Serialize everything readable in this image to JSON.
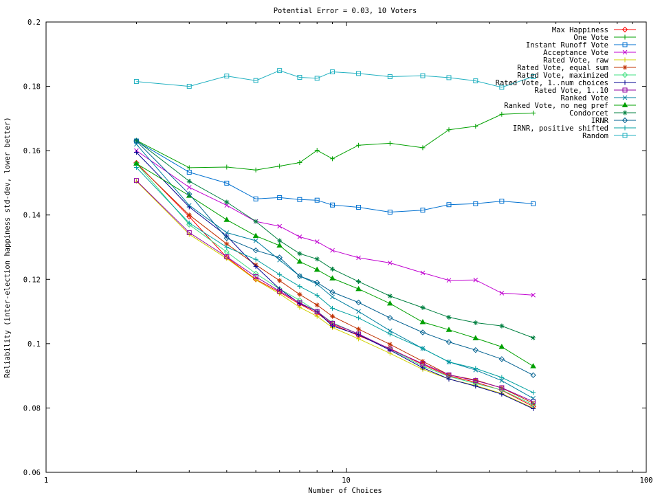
{
  "chart_data": {
    "type": "line",
    "title": "Potential Error = 0.03, 10 Voters",
    "xlabel": "Number of Choices",
    "ylabel": "Reliability (inter-election happiness std-dev, lower better)",
    "x_scale": "log",
    "xlim": [
      1,
      100
    ],
    "ylim": [
      0.06,
      0.2
    ],
    "x_ticks": [
      1,
      10,
      100
    ],
    "x_tick_labels": [
      "1",
      "10",
      "100"
    ],
    "y_ticks": [
      0.06,
      0.08,
      0.1,
      0.12,
      0.14,
      0.16,
      0.18,
      0.2
    ],
    "y_tick_labels": [
      "0.06",
      "0.08",
      "0.1",
      "0.12",
      "0.14",
      "0.16",
      "0.18",
      "0.2"
    ],
    "grid": false,
    "legend_position": "top-right",
    "x": [
      2,
      3,
      4,
      5,
      6,
      7,
      8,
      9,
      11,
      14,
      18,
      22,
      27,
      33,
      42
    ],
    "series": [
      {
        "name": "Max Happiness",
        "color": "#ff0000",
        "marker": "diamond",
        "values": [
          0.1562,
          0.1395,
          0.1268,
          0.12,
          0.116,
          0.1123,
          0.1095,
          0.106,
          0.1025,
          0.0985,
          0.0935,
          0.09,
          0.088,
          0.0855,
          0.0805
        ]
      },
      {
        "name": "One Vote",
        "color": "#00a000",
        "marker": "plus",
        "values": [
          0.1632,
          0.1547,
          0.1549,
          0.154,
          0.1552,
          0.1563,
          0.1601,
          0.1575,
          0.1617,
          0.1623,
          0.1609,
          0.1665,
          0.1676,
          0.1713,
          0.1717
        ]
      },
      {
        "name": "Instant Runoff Vote",
        "color": "#0070d0",
        "marker": "square",
        "values": [
          0.163,
          0.1533,
          0.1499,
          0.145,
          0.1454,
          0.1448,
          0.1446,
          0.1431,
          0.1424,
          0.1409,
          0.1415,
          0.1432,
          0.1435,
          0.1443,
          0.1435
        ]
      },
      {
        "name": "Acceptance Vote",
        "color": "#c000d0",
        "marker": "x",
        "values": [
          0.16,
          0.1486,
          0.143,
          0.138,
          0.1365,
          0.1332,
          0.1317,
          0.129,
          0.1267,
          0.1251,
          0.122,
          0.1197,
          0.1198,
          0.1157,
          0.1151
        ]
      },
      {
        "name": "Rated Vote, raw",
        "color": "#d0d000",
        "marker": "plus",
        "values": [
          0.1505,
          0.134,
          0.1265,
          0.1198,
          0.1155,
          0.1113,
          0.1085,
          0.105,
          0.1015,
          0.097,
          0.092,
          0.089,
          0.087,
          0.0845,
          0.08
        ]
      },
      {
        "name": "Rated Vote, equal sum",
        "color": "#c03000",
        "marker": "asterisk",
        "values": [
          0.156,
          0.14,
          0.131,
          0.1245,
          0.1196,
          0.1153,
          0.112,
          0.1085,
          0.1045,
          0.0998,
          0.0945,
          0.0903,
          0.0887,
          0.0862,
          0.0815
        ]
      },
      {
        "name": "Rated Vote, maximized",
        "color": "#40e080",
        "marker": "diamond",
        "values": [
          0.156,
          0.137,
          0.1285,
          0.1218,
          0.117,
          0.1135,
          0.11,
          0.1065,
          0.103,
          0.0983,
          0.093,
          0.0898,
          0.0876,
          0.0856,
          0.081
        ]
      },
      {
        "name": "Rated Vote, 1..num choices",
        "color": "#000090",
        "marker": "plus",
        "values": [
          0.1595,
          0.1425,
          0.1335,
          0.124,
          0.117,
          0.1125,
          0.11,
          0.1055,
          0.1028,
          0.098,
          0.0925,
          0.089,
          0.0868,
          0.0843,
          0.0798
        ]
      },
      {
        "name": "Rated Vote, 1..10",
        "color": "#9000a0",
        "marker": "square",
        "values": [
          0.1507,
          0.1345,
          0.127,
          0.1208,
          0.1163,
          0.1127,
          0.11,
          0.1063,
          0.103,
          0.0983,
          0.0938,
          0.0903,
          0.0885,
          0.0863,
          0.082
        ]
      },
      {
        "name": "Ranked Vote",
        "color": "#0080a0",
        "marker": "x",
        "values": [
          0.162,
          0.143,
          0.1345,
          0.132,
          0.126,
          0.121,
          0.1185,
          0.1145,
          0.11,
          0.104,
          0.0985,
          0.0943,
          0.0918,
          0.0885,
          0.083
        ]
      },
      {
        "name": "Ranked Vote, no neg pref",
        "color": "#00a000",
        "marker": "triangle",
        "values": [
          0.156,
          0.146,
          0.1385,
          0.1335,
          0.1305,
          0.1255,
          0.123,
          0.1203,
          0.117,
          0.1125,
          0.1067,
          0.1043,
          0.1017,
          0.099,
          0.093
        ]
      },
      {
        "name": "Condorcet",
        "color": "#008040",
        "marker": "asterisk",
        "values": [
          0.1632,
          0.1505,
          0.144,
          0.138,
          0.132,
          0.128,
          0.1263,
          0.1232,
          0.1193,
          0.1148,
          0.1112,
          0.1082,
          0.1065,
          0.1055,
          0.1018
        ]
      },
      {
        "name": "IRNR",
        "color": "#006090",
        "marker": "diamond",
        "values": [
          0.163,
          0.1465,
          0.1328,
          0.129,
          0.1268,
          0.121,
          0.119,
          0.116,
          0.1128,
          0.108,
          0.1035,
          0.1005,
          0.098,
          0.0952,
          0.0902
        ]
      },
      {
        "name": "IRNR, positive shifted",
        "color": "#00a0a0",
        "marker": "plus",
        "values": [
          0.1548,
          0.1375,
          0.13,
          0.1262,
          0.1215,
          0.1178,
          0.115,
          0.111,
          0.108,
          0.103,
          0.0985,
          0.0943,
          0.0923,
          0.0895,
          0.0848
        ]
      },
      {
        "name": "Random",
        "color": "#20b0c0",
        "marker": "square",
        "values": [
          0.1815,
          0.18,
          0.1832,
          0.1818,
          0.1849,
          0.1828,
          0.1825,
          0.1845,
          0.184,
          0.183,
          0.1833,
          0.1827,
          0.1817,
          0.1797,
          0.183
        ]
      }
    ]
  }
}
